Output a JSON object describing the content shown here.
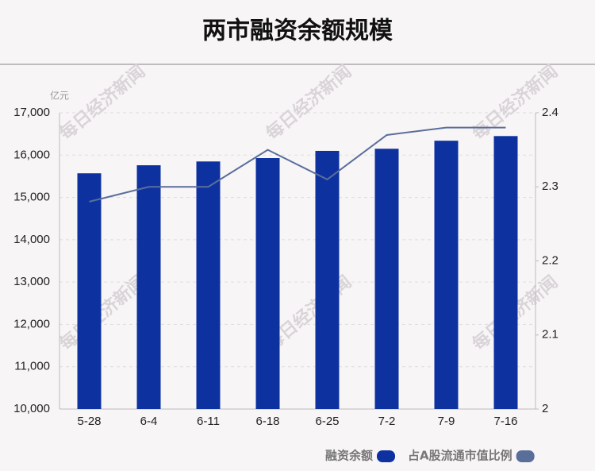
{
  "chart_data": {
    "type": "bar-line",
    "title": "两市融资余额规模",
    "y_unit": "亿元",
    "watermark": "每日经济新闻",
    "categories": [
      "5-28",
      "6-4",
      "6-11",
      "6-18",
      "6-25",
      "7-2",
      "7-9",
      "7-16"
    ],
    "series": [
      {
        "name": "融资余额",
        "type": "bar",
        "color": "#0d32a0",
        "values": [
          15570,
          15760,
          15850,
          15930,
          16100,
          16150,
          16340,
          16450
        ]
      },
      {
        "name": "占A股流通市值比例",
        "type": "line",
        "axis": "y2",
        "color": "#5a6e9a",
        "values": [
          2.28,
          2.3,
          2.3,
          2.35,
          2.31,
          2.37,
          2.38,
          2.38
        ]
      }
    ],
    "ylim": [
      10000,
      17000
    ],
    "yticks": [
      {
        "value": 10000,
        "label": "10,000"
      },
      {
        "value": 11000,
        "label": "11,000"
      },
      {
        "value": 12000,
        "label": "12,000"
      },
      {
        "value": 13000,
        "label": "13,000"
      },
      {
        "value": 14000,
        "label": "14,000"
      },
      {
        "value": 15000,
        "label": "15,000"
      },
      {
        "value": 16000,
        "label": "16,000"
      },
      {
        "value": 17000,
        "label": "17,000"
      }
    ],
    "y2lim": [
      2,
      2.4
    ],
    "y2ticks": [
      2,
      2.1,
      2.2,
      2.3,
      2.4
    ],
    "grid": true
  }
}
